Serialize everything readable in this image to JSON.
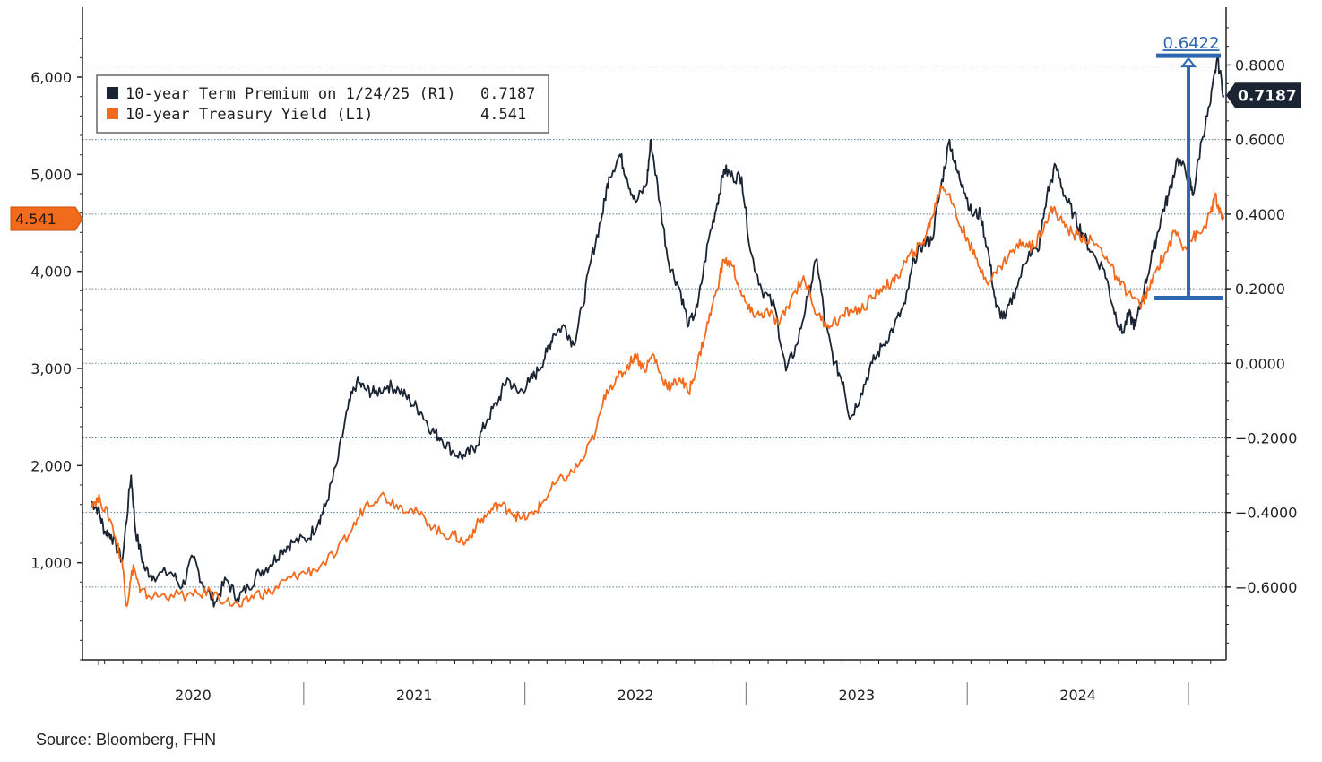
{
  "chart_data": {
    "type": "line",
    "title": "",
    "source": "Source: Bloomberg, FHN",
    "x_categories": [
      "2020",
      "2021",
      "2022",
      "2023",
      "2024"
    ],
    "x_range": [
      2019.9,
      2025.07
    ],
    "left_axis": {
      "label": "10-year Treasury Yield (L1)",
      "ticks": [
        1.0,
        2.0,
        3.0,
        4.0,
        5.0,
        6.0
      ],
      "tick_labels": [
        "1,000",
        "2,000",
        "3,000",
        "4,000",
        "5,000",
        "6,000"
      ],
      "range": [
        0.0,
        6.72
      ]
    },
    "right_axis": {
      "label": "10-year Term Premium (R1)",
      "ticks": [
        0.8,
        0.6,
        0.4,
        0.2,
        0.0,
        -0.2,
        -0.4,
        -0.6
      ],
      "tick_labels": [
        "0.8000",
        "0.6000",
        "0.4000",
        "0.2000",
        "0.0000",
        "-0.2000",
        "-0.4000",
        "-0.6000"
      ],
      "range": [
        -0.795,
        0.955
      ]
    },
    "legend": {
      "position": "top-left",
      "entries": [
        {
          "name": "10-year Term Premium on 1/24/25 (R1)",
          "value": "0.7187",
          "color": "#1b2433"
        },
        {
          "name": "10-year Treasury Yield (L1)",
          "value": "4.541",
          "color": "#f26b1d"
        }
      ]
    },
    "markers": {
      "left_last_value": "4.541",
      "right_last_value": "0.7187"
    },
    "annotation": {
      "label": "0.6422",
      "date": 2024.9,
      "from_value": 0.175,
      "to_value": 0.82,
      "color": "#2e67b0"
    },
    "series": [
      {
        "name": "10-year Term Premium",
        "axis": "right",
        "color": "#1b2433",
        "points": [
          [
            2019.94,
            -0.37
          ],
          [
            2019.97,
            -0.39
          ],
          [
            2020.0,
            -0.45
          ],
          [
            2020.03,
            -0.46
          ],
          [
            2020.08,
            -0.53
          ],
          [
            2020.12,
            -0.3
          ],
          [
            2020.14,
            -0.45
          ],
          [
            2020.18,
            -0.55
          ],
          [
            2020.22,
            -0.57
          ],
          [
            2020.3,
            -0.56
          ],
          [
            2020.35,
            -0.6
          ],
          [
            2020.4,
            -0.52
          ],
          [
            2020.45,
            -0.6
          ],
          [
            2020.5,
            -0.64
          ],
          [
            2020.55,
            -0.58
          ],
          [
            2020.6,
            -0.63
          ],
          [
            2020.65,
            -0.6
          ],
          [
            2020.7,
            -0.56
          ],
          [
            2020.75,
            -0.54
          ],
          [
            2020.8,
            -0.5
          ],
          [
            2020.85,
            -0.48
          ],
          [
            2020.92,
            -0.47
          ],
          [
            2020.97,
            -0.42
          ],
          [
            2021.0,
            -0.38
          ],
          [
            2021.05,
            -0.27
          ],
          [
            2021.1,
            -0.12
          ],
          [
            2021.14,
            -0.05
          ],
          [
            2021.18,
            -0.07
          ],
          [
            2021.22,
            -0.08
          ],
          [
            2021.28,
            -0.06
          ],
          [
            2021.33,
            -0.07
          ],
          [
            2021.38,
            -0.1
          ],
          [
            2021.43,
            -0.13
          ],
          [
            2021.48,
            -0.18
          ],
          [
            2021.52,
            -0.2
          ],
          [
            2021.58,
            -0.24
          ],
          [
            2021.63,
            -0.25
          ],
          [
            2021.68,
            -0.22
          ],
          [
            2021.73,
            -0.15
          ],
          [
            2021.78,
            -0.1
          ],
          [
            2021.82,
            -0.04
          ],
          [
            2021.87,
            -0.08
          ],
          [
            2021.92,
            -0.05
          ],
          [
            2021.96,
            -0.02
          ],
          [
            2022.0,
            0.03
          ],
          [
            2022.03,
            0.08
          ],
          [
            2022.08,
            0.1
          ],
          [
            2022.12,
            0.05
          ],
          [
            2022.16,
            0.15
          ],
          [
            2022.2,
            0.28
          ],
          [
            2022.25,
            0.4
          ],
          [
            2022.28,
            0.5
          ],
          [
            2022.33,
            0.56
          ],
          [
            2022.36,
            0.5
          ],
          [
            2022.4,
            0.43
          ],
          [
            2022.45,
            0.48
          ],
          [
            2022.47,
            0.6
          ],
          [
            2022.51,
            0.43
          ],
          [
            2022.55,
            0.27
          ],
          [
            2022.6,
            0.2
          ],
          [
            2022.64,
            0.1
          ],
          [
            2022.68,
            0.15
          ],
          [
            2022.73,
            0.33
          ],
          [
            2022.77,
            0.43
          ],
          [
            2022.8,
            0.52
          ],
          [
            2022.84,
            0.5
          ],
          [
            2022.88,
            0.5
          ],
          [
            2022.92,
            0.3
          ],
          [
            2022.97,
            0.2
          ],
          [
            2023.03,
            0.15
          ],
          [
            2023.08,
            -0.02
          ],
          [
            2023.13,
            0.05
          ],
          [
            2023.18,
            0.18
          ],
          [
            2023.22,
            0.28
          ],
          [
            2023.26,
            0.1
          ],
          [
            2023.3,
            0.0
          ],
          [
            2023.34,
            -0.05
          ],
          [
            2023.37,
            -0.15
          ],
          [
            2023.42,
            -0.08
          ],
          [
            2023.47,
            0.0
          ],
          [
            2023.52,
            0.05
          ],
          [
            2023.57,
            0.1
          ],
          [
            2023.62,
            0.16
          ],
          [
            2023.66,
            0.28
          ],
          [
            2023.7,
            0.32
          ],
          [
            2023.74,
            0.33
          ],
          [
            2023.78,
            0.47
          ],
          [
            2023.82,
            0.6
          ],
          [
            2023.85,
            0.52
          ],
          [
            2023.88,
            0.48
          ],
          [
            2023.92,
            0.4
          ],
          [
            2023.96,
            0.4
          ],
          [
            2024.0,
            0.28
          ],
          [
            2024.03,
            0.15
          ],
          [
            2024.07,
            0.12
          ],
          [
            2024.12,
            0.2
          ],
          [
            2024.18,
            0.3
          ],
          [
            2024.22,
            0.3
          ],
          [
            2024.26,
            0.45
          ],
          [
            2024.3,
            0.53
          ],
          [
            2024.34,
            0.45
          ],
          [
            2024.38,
            0.4
          ],
          [
            2024.42,
            0.35
          ],
          [
            2024.46,
            0.3
          ],
          [
            2024.52,
            0.25
          ],
          [
            2024.56,
            0.15
          ],
          [
            2024.6,
            0.08
          ],
          [
            2024.63,
            0.13
          ],
          [
            2024.66,
            0.1
          ],
          [
            2024.7,
            0.2
          ],
          [
            2024.74,
            0.3
          ],
          [
            2024.78,
            0.4
          ],
          [
            2024.81,
            0.45
          ],
          [
            2024.85,
            0.55
          ],
          [
            2024.9,
            0.5
          ],
          [
            2024.92,
            0.45
          ],
          [
            2024.96,
            0.6
          ],
          [
            2025.0,
            0.7
          ],
          [
            2025.03,
            0.82
          ],
          [
            2025.06,
            0.7187
          ]
        ]
      },
      {
        "name": "10-year Treasury Yield",
        "axis": "left",
        "color": "#f26b1d",
        "points": [
          [
            2019.94,
            1.62
          ],
          [
            2019.98,
            1.65
          ],
          [
            2020.03,
            1.42
          ],
          [
            2020.08,
            1.0
          ],
          [
            2020.1,
            0.55
          ],
          [
            2020.13,
            0.98
          ],
          [
            2020.16,
            0.7
          ],
          [
            2020.22,
            0.65
          ],
          [
            2020.3,
            0.67
          ],
          [
            2020.4,
            0.66
          ],
          [
            2020.48,
            0.7
          ],
          [
            2020.55,
            0.6
          ],
          [
            2020.62,
            0.55
          ],
          [
            2020.68,
            0.68
          ],
          [
            2020.75,
            0.69
          ],
          [
            2020.82,
            0.82
          ],
          [
            2020.88,
            0.88
          ],
          [
            2020.95,
            0.93
          ],
          [
            2021.05,
            1.1
          ],
          [
            2021.12,
            1.35
          ],
          [
            2021.18,
            1.6
          ],
          [
            2021.25,
            1.7
          ],
          [
            2021.32,
            1.6
          ],
          [
            2021.38,
            1.55
          ],
          [
            2021.45,
            1.45
          ],
          [
            2021.52,
            1.3
          ],
          [
            2021.58,
            1.28
          ],
          [
            2021.63,
            1.2
          ],
          [
            2021.68,
            1.38
          ],
          [
            2021.73,
            1.5
          ],
          [
            2021.78,
            1.6
          ],
          [
            2021.83,
            1.55
          ],
          [
            2021.88,
            1.45
          ],
          [
            2021.94,
            1.5
          ],
          [
            2021.98,
            1.62
          ],
          [
            2022.04,
            1.82
          ],
          [
            2022.1,
            1.9
          ],
          [
            2022.16,
            2.05
          ],
          [
            2022.22,
            2.35
          ],
          [
            2022.27,
            2.78
          ],
          [
            2022.32,
            2.9
          ],
          [
            2022.36,
            3.0
          ],
          [
            2022.4,
            3.15
          ],
          [
            2022.44,
            2.98
          ],
          [
            2022.48,
            3.15
          ],
          [
            2022.52,
            2.9
          ],
          [
            2022.56,
            2.8
          ],
          [
            2022.6,
            2.9
          ],
          [
            2022.64,
            2.75
          ],
          [
            2022.68,
            3.05
          ],
          [
            2022.72,
            3.4
          ],
          [
            2022.76,
            3.75
          ],
          [
            2022.8,
            4.12
          ],
          [
            2022.84,
            4.05
          ],
          [
            2022.88,
            3.75
          ],
          [
            2022.92,
            3.58
          ],
          [
            2022.96,
            3.55
          ],
          [
            2023.0,
            3.58
          ],
          [
            2023.05,
            3.45
          ],
          [
            2023.1,
            3.7
          ],
          [
            2023.16,
            3.95
          ],
          [
            2023.22,
            3.55
          ],
          [
            2023.27,
            3.45
          ],
          [
            2023.32,
            3.5
          ],
          [
            2023.37,
            3.6
          ],
          [
            2023.42,
            3.6
          ],
          [
            2023.47,
            3.72
          ],
          [
            2023.52,
            3.85
          ],
          [
            2023.57,
            3.88
          ],
          [
            2023.62,
            4.1
          ],
          [
            2023.66,
            4.2
          ],
          [
            2023.7,
            4.3
          ],
          [
            2023.74,
            4.55
          ],
          [
            2023.78,
            4.88
          ],
          [
            2023.82,
            4.8
          ],
          [
            2023.86,
            4.5
          ],
          [
            2023.9,
            4.35
          ],
          [
            2023.95,
            4.05
          ],
          [
            2024.0,
            3.9
          ],
          [
            2024.05,
            4.05
          ],
          [
            2024.1,
            4.2
          ],
          [
            2024.15,
            4.3
          ],
          [
            2024.2,
            4.25
          ],
          [
            2024.25,
            4.5
          ],
          [
            2024.29,
            4.65
          ],
          [
            2024.33,
            4.5
          ],
          [
            2024.38,
            4.38
          ],
          [
            2024.43,
            4.35
          ],
          [
            2024.48,
            4.28
          ],
          [
            2024.53,
            4.15
          ],
          [
            2024.58,
            3.9
          ],
          [
            2024.63,
            3.78
          ],
          [
            2024.68,
            3.65
          ],
          [
            2024.72,
            3.8
          ],
          [
            2024.76,
            4.05
          ],
          [
            2024.8,
            4.2
          ],
          [
            2024.84,
            4.42
          ],
          [
            2024.88,
            4.25
          ],
          [
            2024.92,
            4.35
          ],
          [
            2024.96,
            4.4
          ],
          [
            2025.0,
            4.6
          ],
          [
            2025.02,
            4.78
          ],
          [
            2025.04,
            4.6
          ],
          [
            2025.06,
            4.541
          ]
        ]
      }
    ]
  }
}
